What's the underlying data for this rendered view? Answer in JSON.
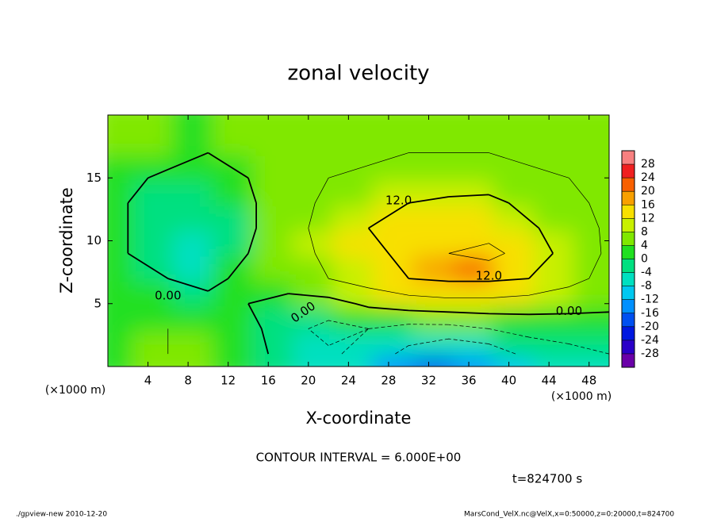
{
  "chart_data": {
    "type": "contour",
    "title": "zonal velocity",
    "x_label": "X-coordinate",
    "y_label": "Z-coordinate",
    "x_unit_label": "(×1000 m)",
    "xlim": [
      0,
      50
    ],
    "xticks": [
      4,
      8,
      12,
      16,
      20,
      24,
      28,
      32,
      36,
      40,
      44,
      48
    ],
    "ylim": [
      0,
      20
    ],
    "yticks": [
      5,
      10,
      15
    ],
    "x": [
      2,
      6,
      10,
      14,
      18,
      22,
      26,
      30,
      34,
      38,
      42,
      46,
      50
    ],
    "y": [
      1,
      3,
      5,
      7,
      9,
      11,
      13,
      15,
      17,
      19
    ],
    "z": [
      [
        2,
        6,
        5,
        2,
        -2,
        -5,
        -8,
        -14,
        -18,
        -16,
        -10,
        -8,
        -6
      ],
      [
        3,
        6,
        4,
        2,
        -4,
        -8,
        -6,
        -8,
        -8,
        -6,
        -4,
        -3,
        -2
      ],
      [
        2,
        2,
        1,
        0,
        -2,
        -2,
        1,
        3,
        4,
        4,
        3,
        2,
        1
      ],
      [
        1,
        0,
        -1,
        1,
        3,
        6,
        9,
        12,
        13,
        13,
        12,
        8,
        4
      ],
      [
        0,
        -2,
        -5,
        0,
        4,
        7,
        10,
        14,
        18,
        20,
        15,
        10,
        5
      ],
      [
        0,
        -2,
        -5,
        -1,
        4,
        8,
        12,
        14,
        15,
        15,
        13,
        9,
        5
      ],
      [
        0,
        -2,
        -4,
        -1,
        4,
        7,
        10,
        12,
        13,
        14,
        10,
        7,
        5
      ],
      [
        1,
        -1,
        -2,
        0,
        4,
        6,
        7,
        9,
        9,
        8,
        7,
        6,
        4
      ],
      [
        3,
        2,
        0,
        2,
        4,
        5,
        5,
        6,
        6,
        6,
        5,
        4,
        4
      ],
      [
        4,
        4,
        3,
        4,
        4,
        4,
        4,
        4,
        4,
        4,
        4,
        4,
        4
      ]
    ],
    "contour_interval": {
      "value": 6,
      "label": "CONTOUR INTERVAL = 6.000E+00"
    },
    "contour_labels": [
      "12.0",
      "12.0",
      "0.00",
      "0.00",
      "0.00"
    ],
    "colorbar": {
      "lim": [
        -32,
        32
      ],
      "ticks": [
        28,
        24,
        20,
        16,
        12,
        8,
        4,
        0,
        -4,
        -8,
        -12,
        -16,
        -20,
        -24,
        -28
      ],
      "colors": [
        "#6a00a8",
        "#2a00c8",
        "#0018e0",
        "#0050f0",
        "#0090ff",
        "#00c8f0",
        "#00e0c0",
        "#00e080",
        "#20e020",
        "#80e800",
        "#c8f000",
        "#f8e000",
        "#f8a000",
        "#f86000",
        "#f02020",
        "#f88080"
      ]
    },
    "time_label": "t=824700 s",
    "footer_left": "./gpview-new  2010-12-20",
    "footer_right": "MarsCond_VelX.nc@VelX,x=0:50000,z=0:20000,t=824700"
  }
}
